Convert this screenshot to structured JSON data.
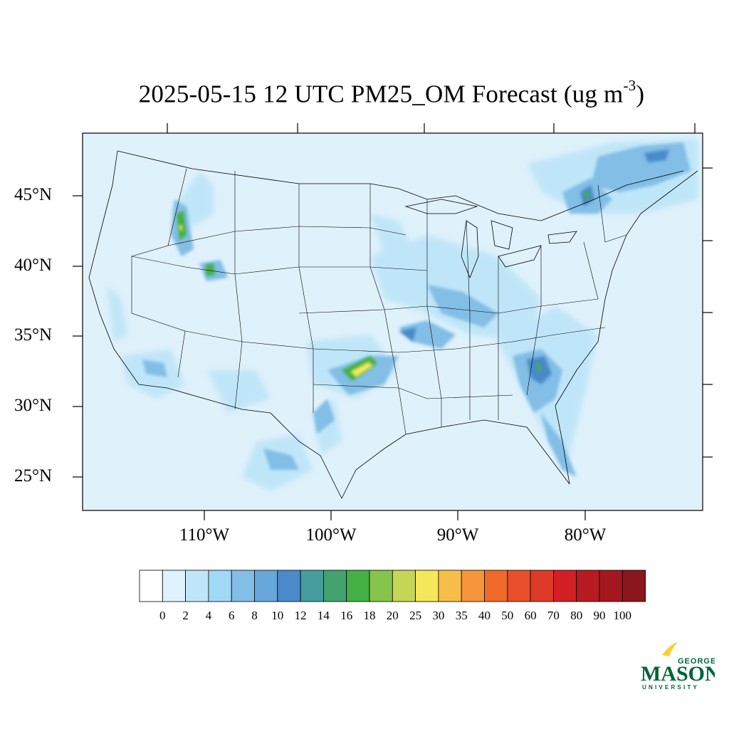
{
  "title": {
    "main": "2025-05-15 12 UTC PM25_OM Forecast (ug m",
    "sup": "-3",
    "close": ")"
  },
  "map": {
    "background_color": "#dff1fb",
    "lat_labels": [
      "45°N",
      "40°N",
      "35°N",
      "30°N",
      "25°N"
    ],
    "lon_labels": [
      "110°W",
      "100°W",
      "90°W",
      "80°W"
    ]
  },
  "colorbar": {
    "labels": [
      "0",
      "2",
      "4",
      "6",
      "8",
      "10",
      "12",
      "14",
      "16",
      "18",
      "20",
      "25",
      "30",
      "35",
      "40",
      "50",
      "60",
      "70",
      "80",
      "90",
      "100"
    ],
    "colors": [
      "#ffffff",
      "#e0f3fc",
      "#bfe6f8",
      "#9fd9f5",
      "#82bee6",
      "#67a7db",
      "#4a8ac9",
      "#479c9e",
      "#44a26f",
      "#45b044",
      "#86c44b",
      "#c3d655",
      "#f6e65a",
      "#f7bd4a",
      "#f5963b",
      "#f06a2a",
      "#e84f2a",
      "#df3a27",
      "#d32027",
      "#b81b22",
      "#a4171f",
      "#8b161b"
    ]
  },
  "logo": {
    "line1": "GEORGE",
    "line2": "MASON",
    "line3": "UNIVERSITY",
    "green": "#006633",
    "gold": "#ffcc33"
  }
}
